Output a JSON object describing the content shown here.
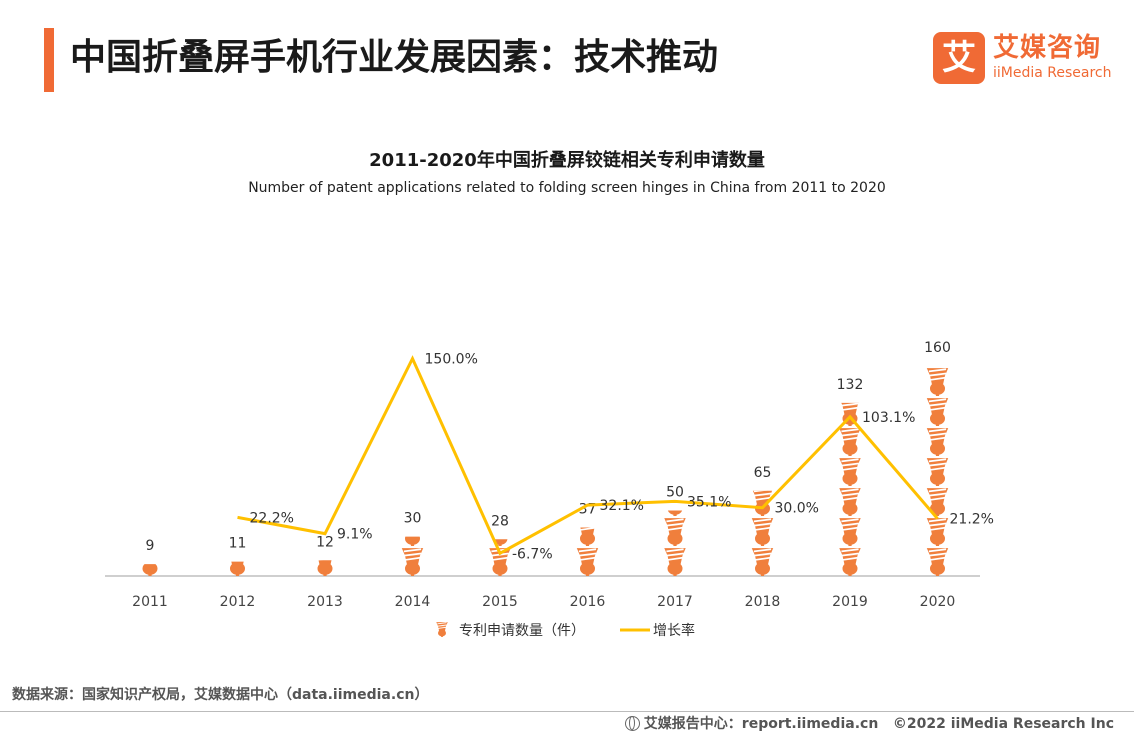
{
  "header": {
    "title": "中国折叠屏手机行业发展因素：技术推动",
    "logo_cn": "艾媒咨询",
    "logo_en": "iiMedia Research",
    "logo_mark": "艾"
  },
  "chart_data": {
    "type": "bar",
    "title": "2011-2020年中国折叠屏铰链相关专利申请数量",
    "subtitle": "Number of patent applications related to folding screen hinges in China from 2011 to 2020",
    "categories": [
      "2011",
      "2012",
      "2013",
      "2014",
      "2015",
      "2016",
      "2017",
      "2018",
      "2019",
      "2020"
    ],
    "series": [
      {
        "name": "专利申请数量（件）",
        "type": "bar",
        "axis": "left",
        "values": [
          9,
          11,
          12,
          30,
          28,
          37,
          50,
          65,
          132,
          160
        ],
        "labels": [
          "9",
          "11",
          "12",
          "30",
          "28",
          "37",
          "50",
          "65",
          "132",
          "160"
        ]
      },
      {
        "name": "增长率",
        "type": "line",
        "axis": "right",
        "values": [
          null,
          22.2,
          9.1,
          150.0,
          -6.7,
          32.1,
          35.1,
          30.0,
          103.1,
          21.2
        ],
        "labels": [
          "",
          "22.2%",
          "9.1%",
          "150.0%",
          "-6.7%",
          "32.1%",
          "35.1%",
          "30.0%",
          "103.1%",
          "21.2%"
        ]
      }
    ],
    "ylim_left": [
      0,
      180
    ],
    "ylim_right": [
      -25,
      165
    ],
    "legend_position": "bottom",
    "grid": false,
    "colors": {
      "bar": "#F07F3C",
      "line": "#FFC000",
      "axis": "#BFBFBF"
    },
    "bar_icon": "hinge-icon"
  },
  "footer": {
    "source": "数据来源：国家知识产权局，艾媒数据中心（data.iimedia.cn）",
    "report": "艾媒报告中心：report.iimedia.cn",
    "copyright": "©2022 iiMedia Research Inc",
    "globe_icon": "globe-icon"
  }
}
